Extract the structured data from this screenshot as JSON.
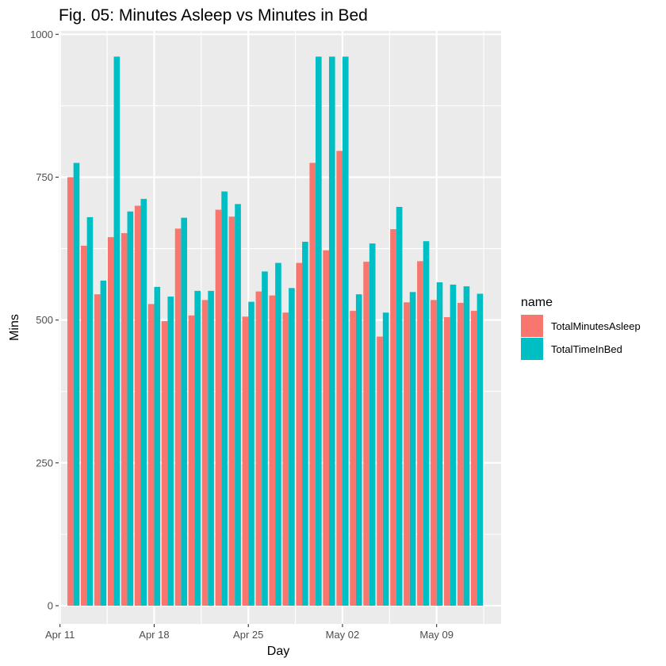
{
  "chart_data": {
    "type": "bar",
    "title": "Fig. 05: Minutes Asleep vs Minutes in Bed",
    "xlabel": "Day",
    "ylabel": "Mins",
    "ylim": [
      -32,
      1006
    ],
    "yticks": [
      0,
      250,
      500,
      750,
      1000
    ],
    "yticklabels": [
      "0",
      "250",
      "500",
      "750",
      "1000"
    ],
    "xlim": [
      "2016-04-10T21:36",
      "2016-05-13T19:00"
    ],
    "xticks": [
      "2016-04-11",
      "2016-04-18",
      "2016-04-25",
      "2016-05-02",
      "2016-05-09"
    ],
    "xticklabels": [
      "Apr 11",
      "Apr 18",
      "Apr 25",
      "May 02",
      "May 09"
    ],
    "grid": true,
    "background": "#EBEBEB",
    "legend": {
      "title": "name",
      "position": "right",
      "entries": [
        "TotalMinutesAsleep",
        "TotalTimeInBed"
      ]
    },
    "categories": [
      "2016-04-12",
      "2016-04-13",
      "2016-04-14",
      "2016-04-15",
      "2016-04-16",
      "2016-04-17",
      "2016-04-18",
      "2016-04-19",
      "2016-04-20",
      "2016-04-21",
      "2016-04-22",
      "2016-04-23",
      "2016-04-24",
      "2016-04-25",
      "2016-04-26",
      "2016-04-27",
      "2016-04-28",
      "2016-04-29",
      "2016-04-30",
      "2016-05-01",
      "2016-05-02",
      "2016-05-03",
      "2016-05-04",
      "2016-05-05",
      "2016-05-06",
      "2016-05-07",
      "2016-05-08",
      "2016-05-09",
      "2016-05-10",
      "2016-05-11",
      "2016-05-12"
    ],
    "series": [
      {
        "name": "TotalMinutesAsleep",
        "color": "#F8766D",
        "values": [
          750,
          630,
          545,
          645,
          652,
          700,
          528,
          498,
          660,
          508,
          535,
          693,
          681,
          506,
          550,
          543,
          513,
          600,
          775,
          622,
          796,
          516,
          602,
          471,
          659,
          531,
          603,
          535,
          505,
          530,
          516
        ]
      },
      {
        "name": "TotalTimeInBed",
        "color": "#00BFC4",
        "values": [
          775,
          680,
          569,
          961,
          690,
          712,
          558,
          541,
          679,
          551,
          551,
          725,
          703,
          532,
          585,
          600,
          556,
          637,
          961,
          961,
          961,
          545,
          634,
          513,
          698,
          549,
          638,
          566,
          562,
          559,
          546
        ]
      }
    ]
  }
}
